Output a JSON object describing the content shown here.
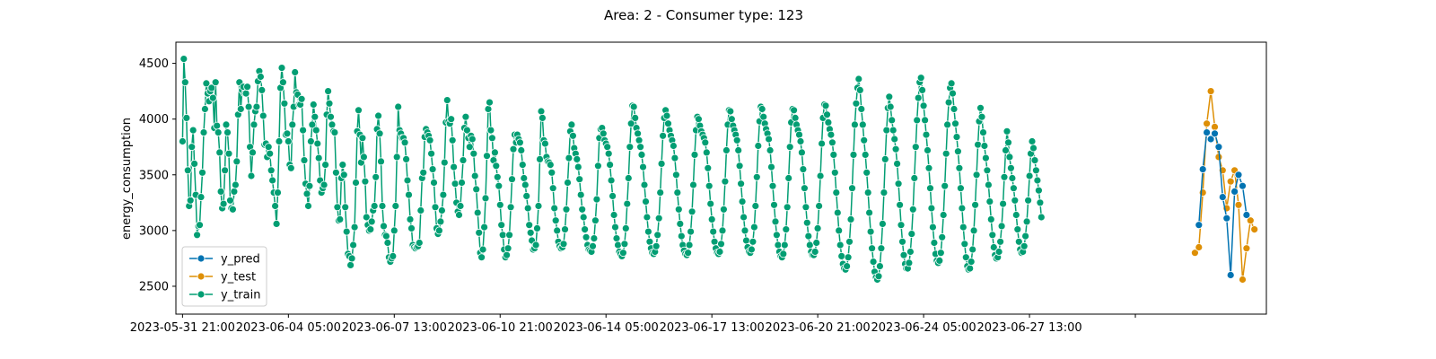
{
  "chart_data": {
    "type": "line",
    "title": "Area: 2 - Consumer type: 123",
    "xlabel": "",
    "ylabel": "energy_consumption",
    "x_start": "2023-05-31 21:00",
    "x_end": "2023-07-03 18:00",
    "xlim": [
      "2023-05-31 16:00",
      "2023-07-05 00:00"
    ],
    "ylim": [
      2250,
      4690
    ],
    "x_tick_labels": [
      "2023-05-31 21:00",
      "2023-06-04 05:00",
      "2023-06-07 13:00",
      "2023-06-10 21:00",
      "2023-06-14 05:00",
      "2023-06-17 13:00",
      "2023-06-20 21:00",
      "2023-06-24 05:00",
      "2023-06-27 13:00",
      ""
    ],
    "y_ticks": [
      2500,
      3000,
      3500,
      4000,
      4500
    ],
    "grid": false,
    "legend_position": "lower-left",
    "series": [
      {
        "name": "y_pred",
        "color": "#0173b2",
        "x_start": "2023-07-02 21:00",
        "values": [
          3050,
          3550,
          3880,
          3820,
          3870,
          3750,
          3300,
          3110,
          2600,
          3350,
          3500,
          3400,
          3140
        ]
      },
      {
        "name": "y_test",
        "color": "#de8f05",
        "x_start": "2023-07-02 18:00",
        "values": [
          2800,
          2850,
          3340,
          3960,
          4250,
          3930,
          3660,
          3540,
          3200,
          3440,
          3540,
          3230,
          2560,
          2840,
          3090,
          3010
        ]
      },
      {
        "name": "y_train",
        "color": "#029e73",
        "x_start": "2023-05-31 21:00",
        "sample_interval_hours": 1,
        "values": [
          3800,
          4540,
          4330,
          4010,
          3540,
          3220,
          3270,
          3750,
          3900,
          3600,
          3320,
          2960,
          3040,
          3050,
          3300,
          3520,
          3880,
          4090,
          4320,
          4230,
          4160,
          4250,
          4280,
          4190,
          3920,
          4330,
          3940,
          3880,
          3700,
          3350,
          3200,
          3240,
          3540,
          3950,
          3880,
          3690,
          3270,
          3200,
          3190,
          3350,
          3410,
          3620,
          4040,
          4330,
          4090,
          4260,
          4290,
          4230,
          4230,
          4290,
          4110,
          3750,
          3490,
          3700,
          3950,
          4070,
          4110,
          4340,
          4430,
          4380,
          4260,
          4030,
          3770,
          3780,
          3660,
          3750,
          3690,
          3540,
          3450,
          3340,
          3220,
          3060,
          3340,
          3800,
          4280,
          4460,
          4330,
          4140,
          3860,
          3870,
          3800,
          3590,
          3560,
          3950,
          4110,
          4420,
          4240,
          4220,
          4130,
          4130,
          4180,
          3900,
          3630,
          3420,
          3330,
          3220,
          3400,
          3800,
          3950,
          4130,
          4020,
          3900,
          3780,
          3650,
          3450,
          3340,
          3380,
          3410,
          3590,
          4040,
          4250,
          4140,
          4020,
          3950,
          3890,
          3880,
          3520,
          3210,
          3090,
          3100,
          3470,
          3590,
          3500,
          3210,
          2990,
          2790,
          2770,
          2690,
          2750,
          2870,
          3030,
          3430,
          3890,
          4080,
          3860,
          3610,
          3830,
          3660,
          3440,
          3120,
          3050,
          3000,
          3010,
          3080,
          3180,
          3220,
          3480,
          3910,
          4030,
          3870,
          3620,
          3220,
          3040,
          2960,
          2950,
          2890,
          2760,
          2720,
          2750,
          2770,
          3000,
          3220,
          3660,
          4110,
          3900,
          3870,
          3830,
          3830,
          3790,
          3640,
          3450,
          3320,
          3100,
          3020,
          2870,
          2850,
          2840,
          2850,
          2860,
          2890,
          3180,
          3470,
          3520,
          3840,
          3910,
          3880,
          3850,
          3810,
          3690,
          3550,
          3430,
          3210,
          3020,
          2970,
          3000,
          3080,
          3180,
          3320,
          3610,
          3970,
          4170,
          3980,
          3960,
          4000,
          3810,
          3570,
          3420,
          3250,
          3170,
          3140,
          3220,
          3430,
          3630,
          3920,
          4020,
          3900,
          3830,
          3750,
          3850,
          3820,
          3690,
          3490,
          3370,
          3160,
          2980,
          2800,
          2760,
          2830,
          3030,
          3290,
          3670,
          4090,
          4150,
          3900,
          3830,
          3630,
          3700,
          3580,
          3480,
          3400,
          3230,
          3050,
          2960,
          2830,
          2760,
          2780,
          2840,
          2960,
          3210,
          3460,
          3730,
          3860,
          3790,
          3860,
          3820,
          3790,
          3720,
          3590,
          3470,
          3410,
          3310,
          3200,
          3050,
          2980,
          2910,
          2830,
          2840,
          2870,
          3020,
          3220,
          3640,
          4070,
          4010,
          3810,
          3780,
          3660,
          3620,
          3610,
          3590,
          3520,
          3380,
          3200,
          3090,
          3000,
          2900,
          2860,
          2840,
          2850,
          2880,
          3010,
          3190,
          3430,
          3650,
          3890,
          3950,
          3850,
          3740,
          3690,
          3640,
          3570,
          3460,
          3320,
          3190,
          3120,
          3010,
          2940,
          2870,
          2830,
          2820,
          2810,
          2860,
          2930,
          3090,
          3280,
          3580,
          3830,
          3910,
          3920,
          3870,
          3810,
          3780,
          3750,
          3690,
          3590,
          3450,
          3310,
          3140,
          3030,
          2930,
          2870,
          2810,
          2790,
          2770,
          2800,
          2880,
          3020,
          3240,
          3470,
          3750,
          3960,
          4120,
          4110,
          4010,
          3920,
          3870,
          3810,
          3750,
          3680,
          3570,
          3410,
          3260,
          3120,
          2990,
          2900,
          2840,
          2800,
          2790,
          2810,
          2860,
          2960,
          3110,
          3340,
          3600,
          3850,
          4010,
          4080,
          4030,
          3960,
          3900,
          3850,
          3810,
          3760,
          3650,
          3500,
          3340,
          3190,
          3060,
          2950,
          2870,
          2820,
          2790,
          2780,
          2800,
          2870,
          2990,
          3170,
          3410,
          3680,
          3900,
          4020,
          4000,
          3940,
          3890,
          3860,
          3830,
          3790,
          3700,
          3560,
          3400,
          3240,
          3100,
          2990,
          2900,
          2840,
          2800,
          2790,
          2810,
          2880,
          3000,
          3190,
          3440,
          3720,
          3950,
          4080,
          4070,
          4000,
          3940,
          3900,
          3860,
          3810,
          3720,
          3580,
          3420,
          3260,
          3120,
          3000,
          2910,
          2850,
          2810,
          2800,
          2830,
          2900,
          3030,
          3220,
          3480,
          3760,
          3980,
          4110,
          4090,
          4020,
          3960,
          3910,
          3870,
          3820,
          3720,
          3570,
          3400,
          3230,
          3080,
          2960,
          2870,
          2810,
          2770,
          2760,
          2790,
          2870,
          3010,
          3210,
          3470,
          3750,
          3970,
          4090,
          4080,
          4010,
          3950,
          3900,
          3860,
          3800,
          3700,
          3550,
          3380,
          3210,
          3070,
          2950,
          2870,
          2810,
          2780,
          2780,
          2810,
          2890,
          3020,
          3220,
          3490,
          3780,
          4010,
          4130,
          4120,
          4040,
          3970,
          3910,
          3860,
          3790,
          3680,
          3520,
          3340,
          3160,
          3000,
          2870,
          2770,
          2700,
          2660,
          2650,
          2680,
          2760,
          2900,
          3100,
          3380,
          3680,
          3950,
          4140,
          4280,
          4360,
          4260,
          4090,
          3950,
          3810,
          3680,
          3520,
          3340,
          3160,
          2990,
          2840,
          2720,
          2630,
          2580,
          2560,
          2590,
          2680,
          2840,
          3060,
          3340,
          3640,
          3900,
          4100,
          4200,
          4110,
          3990,
          3900,
          3820,
          3730,
          3600,
          3420,
          3230,
          3050,
          2900,
          2780,
          2700,
          2660,
          2660,
          2710,
          2810,
          2970,
          3190,
          3470,
          3750,
          3990,
          4190,
          4330,
          4370,
          4260,
          4120,
          3990,
          3860,
          3720,
          3560,
          3380,
          3200,
          3030,
          2890,
          2790,
          2730,
          2710,
          2730,
          2800,
          2940,
          3140,
          3400,
          3690,
          3950,
          4150,
          4280,
          4320,
          4230,
          4090,
          3960,
          3840,
          3710,
          3560,
          3380,
          3200,
          3030,
          2880,
          2760,
          2680,
          2650,
          2660,
          2720,
          2830,
          3000,
          3230,
          3500,
          3770,
          3980,
          4100,
          4020,
          3880,
          3760,
          3650,
          3540,
          3410,
          3260,
          3100,
          2960,
          2850,
          2780,
          2750,
          2760,
          2810,
          2900,
          3040,
          3240,
          3480,
          3720,
          3890,
          3790,
          3660,
          3560,
          3470,
          3380,
          3270,
          3140,
          3010,
          2900,
          2830,
          2800,
          2810,
          2860,
          2950,
          3080,
          3270,
          3490,
          3690,
          3800,
          3740,
          3630,
          3540,
          3450,
          3360,
          3250,
          3120
        ]
      }
    ],
    "legend": [
      "y_pred",
      "y_test",
      "y_train"
    ]
  }
}
